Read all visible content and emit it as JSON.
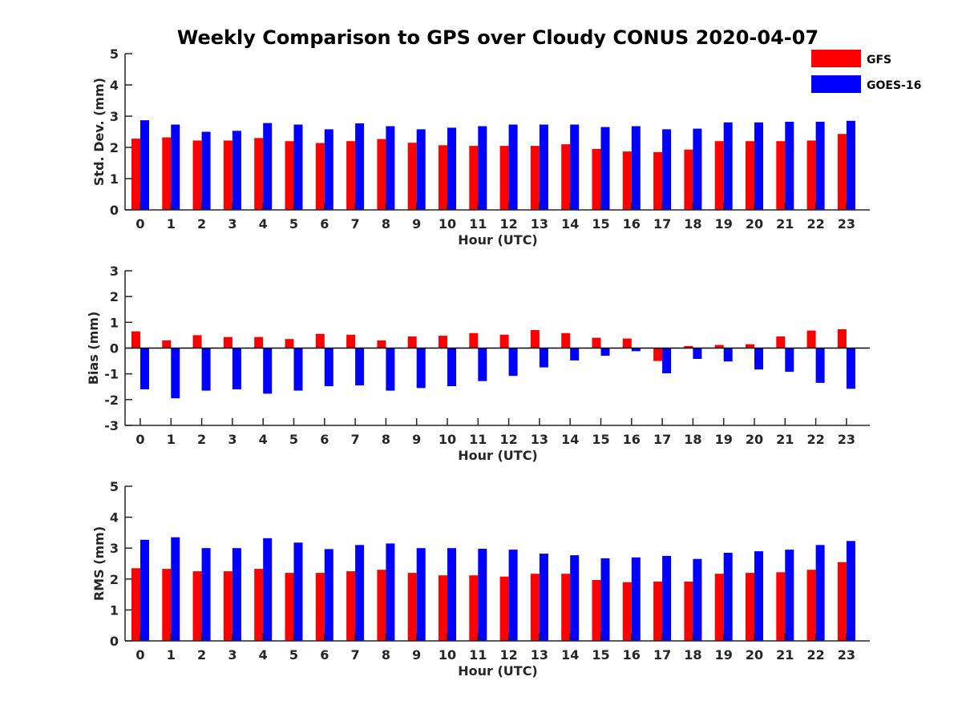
{
  "title": "Weekly Comparison to GPS over Cloudy CONUS 2020-04-07",
  "colors": {
    "GFS": "#ff0000",
    "GOES-16": "#0000ff"
  },
  "legend": [
    "GFS",
    "GOES-16"
  ],
  "chart_data": [
    {
      "type": "bar",
      "categories": [
        "0",
        "1",
        "2",
        "3",
        "4",
        "5",
        "6",
        "7",
        "8",
        "9",
        "10",
        "11",
        "12",
        "13",
        "14",
        "15",
        "16",
        "17",
        "18",
        "19",
        "20",
        "21",
        "22",
        "23"
      ],
      "series": [
        {
          "name": "GFS",
          "values": [
            2.28,
            2.32,
            2.22,
            2.22,
            2.3,
            2.2,
            2.14,
            2.2,
            2.27,
            2.15,
            2.07,
            2.05,
            2.05,
            2.05,
            2.1,
            1.95,
            1.87,
            1.85,
            1.93,
            2.2,
            2.2,
            2.2,
            2.22,
            2.43
          ]
        },
        {
          "name": "GOES-16",
          "values": [
            2.87,
            2.73,
            2.5,
            2.53,
            2.78,
            2.73,
            2.58,
            2.77,
            2.68,
            2.58,
            2.63,
            2.68,
            2.73,
            2.73,
            2.73,
            2.65,
            2.68,
            2.58,
            2.6,
            2.8,
            2.8,
            2.82,
            2.82,
            2.85
          ]
        }
      ],
      "xlabel": "Hour (UTC)",
      "ylabel": "Std. Dev. (mm)",
      "ylim": [
        0,
        5
      ],
      "yticks": [
        "0",
        "1",
        "2",
        "3",
        "4",
        "5"
      ],
      "grid": false,
      "legend_position": "top-right"
    },
    {
      "type": "bar",
      "categories": [
        "0",
        "1",
        "2",
        "3",
        "4",
        "5",
        "6",
        "7",
        "8",
        "9",
        "10",
        "11",
        "12",
        "13",
        "14",
        "15",
        "16",
        "17",
        "18",
        "19",
        "20",
        "21",
        "22",
        "23"
      ],
      "series": [
        {
          "name": "GFS",
          "values": [
            0.65,
            0.3,
            0.5,
            0.43,
            0.43,
            0.35,
            0.55,
            0.52,
            0.3,
            0.45,
            0.48,
            0.58,
            0.52,
            0.7,
            0.58,
            0.4,
            0.37,
            -0.5,
            0.08,
            0.12,
            0.15,
            0.45,
            0.68,
            0.73
          ]
        },
        {
          "name": "GOES-16",
          "values": [
            -1.6,
            -1.95,
            -1.65,
            -1.6,
            -1.77,
            -1.65,
            -1.48,
            -1.45,
            -1.65,
            -1.55,
            -1.48,
            -1.28,
            -1.08,
            -0.75,
            -0.48,
            -0.3,
            -0.12,
            -0.98,
            -0.42,
            -0.52,
            -0.83,
            -0.92,
            -1.35,
            -1.58
          ]
        }
      ],
      "xlabel": "Hour (UTC)",
      "ylabel": "Bias (mm)",
      "ylim": [
        -3,
        3
      ],
      "yticks": [
        "-3",
        "-2",
        "-1",
        "0",
        "1",
        "2",
        "3"
      ],
      "grid": false
    },
    {
      "type": "bar",
      "categories": [
        "0",
        "1",
        "2",
        "3",
        "4",
        "5",
        "6",
        "7",
        "8",
        "9",
        "10",
        "11",
        "12",
        "13",
        "14",
        "15",
        "16",
        "17",
        "18",
        "19",
        "20",
        "21",
        "22",
        "23"
      ],
      "series": [
        {
          "name": "GFS",
          "values": [
            2.35,
            2.33,
            2.25,
            2.25,
            2.33,
            2.2,
            2.2,
            2.25,
            2.3,
            2.2,
            2.12,
            2.12,
            2.08,
            2.17,
            2.17,
            1.97,
            1.9,
            1.92,
            1.92,
            2.17,
            2.2,
            2.22,
            2.3,
            2.55
          ]
        },
        {
          "name": "GOES-16",
          "values": [
            3.27,
            3.35,
            3.0,
            3.0,
            3.32,
            3.18,
            2.97,
            3.1,
            3.15,
            3.0,
            3.0,
            2.98,
            2.95,
            2.82,
            2.77,
            2.67,
            2.7,
            2.75,
            2.65,
            2.85,
            2.9,
            2.95,
            3.1,
            3.23
          ]
        }
      ],
      "xlabel": "Hour (UTC)",
      "ylabel": "RMS (mm)",
      "ylim": [
        0,
        5
      ],
      "yticks": [
        "0",
        "1",
        "2",
        "3",
        "4",
        "5"
      ],
      "grid": false
    }
  ]
}
